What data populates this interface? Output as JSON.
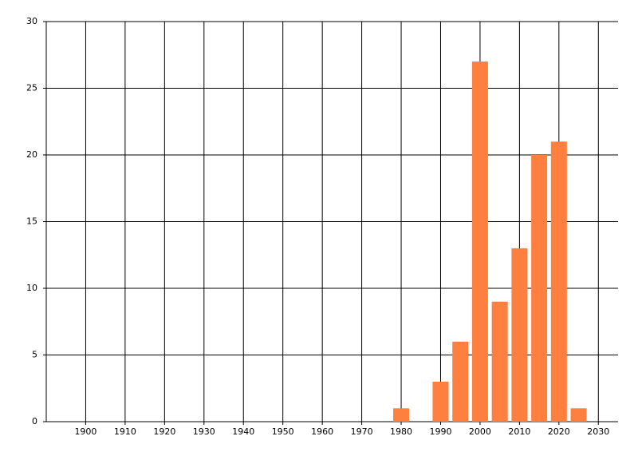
{
  "chart_data": {
    "type": "bar",
    "x": [
      1980,
      1990,
      1995,
      2000,
      2005,
      2010,
      2015,
      2020,
      2025
    ],
    "values": [
      1,
      3,
      6,
      27,
      9,
      13,
      20,
      21,
      1
    ],
    "color": "#ff7f3f",
    "xlim": [
      1890,
      2035
    ],
    "xticks": [
      1900,
      1910,
      1920,
      1930,
      1940,
      1950,
      1960,
      1970,
      1980,
      1990,
      2000,
      2010,
      2020,
      2030
    ],
    "ylim": [
      0,
      30
    ],
    "yticks": [
      0,
      5,
      10,
      15,
      20,
      25,
      30
    ],
    "grid": true
  }
}
